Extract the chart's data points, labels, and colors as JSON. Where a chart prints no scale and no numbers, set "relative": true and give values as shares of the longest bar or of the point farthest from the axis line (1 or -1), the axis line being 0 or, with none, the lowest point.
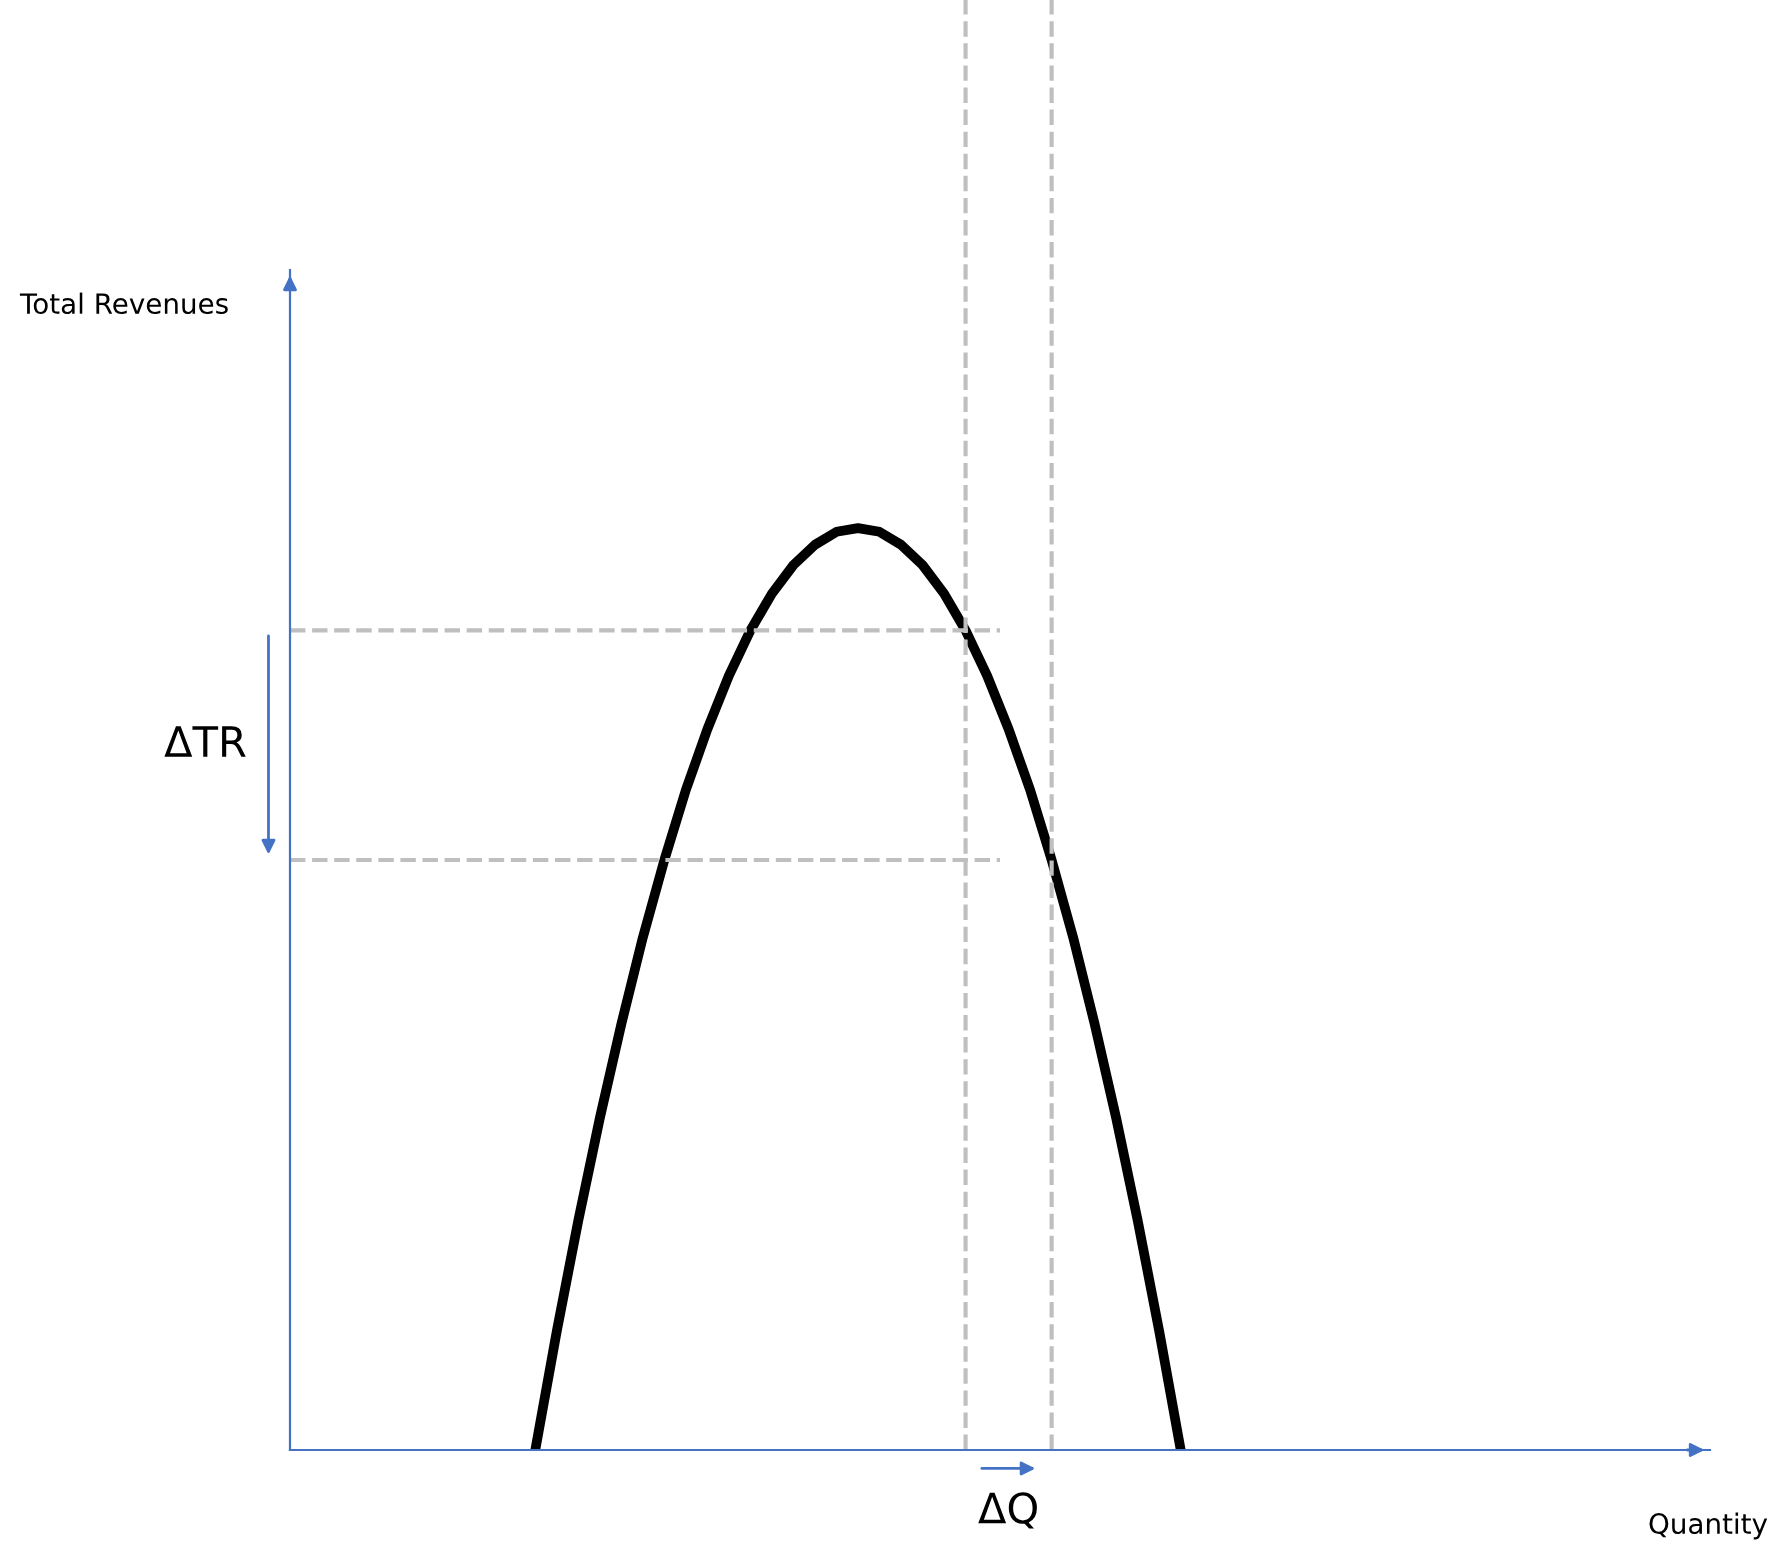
{
  "chart_data": {
    "type": "line",
    "relative": true,
    "categories": [
      null,
      null,
      null,
      null,
      null,
      null,
      null,
      null,
      null,
      null,
      null,
      null,
      null,
      null,
      null,
      null,
      null,
      null,
      null,
      null,
      null,
      null,
      null,
      null,
      null,
      null,
      null,
      null,
      null,
      null,
      null
    ],
    "series": [
      {
        "color": "#000000",
        "values": [
          0,
          0.129,
          0.249,
          0.36,
          0.462,
          0.556,
          0.64,
          0.716,
          0.782,
          0.84,
          0.889,
          0.929,
          0.96,
          0.982,
          0.996,
          1,
          0.996,
          0.982,
          0.96,
          0.929,
          0.889,
          0.84,
          0.782,
          0.716,
          0.64,
          0.556,
          0.462,
          0.36,
          0.249,
          0.129,
          0
        ]
      }
    ],
    "ref_lines": [
      {
        "axis": "y",
        "value": 0.889,
        "color": "#bfbfbf",
        "line_style": "dashed"
      },
      {
        "axis": "y",
        "value": 0.64,
        "color": "#bfbfbf",
        "line_style": "dashed"
      }
    ],
    "annotations": [
      "ΔTR",
      "ΔQ",
      "Total Revenues",
      "Quantity"
    ],
    "legend": false,
    "marker": "none",
    "line_style": "solid"
  }
}
